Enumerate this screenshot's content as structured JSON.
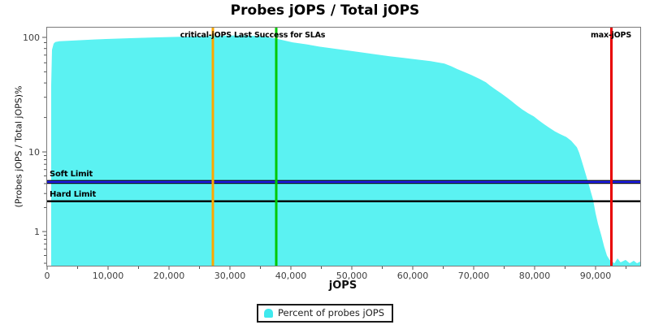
{
  "title": "Probes jOPS / Total jOPS",
  "annotations": {
    "critical_text": "critical-jOPS Last Success for SLAs",
    "max_text": "max-jOPS"
  },
  "legend": {
    "marker_color": "#3FE9EE"
  },
  "chart_data": {
    "type": "area",
    "title": "Probes jOPS / Total jOPS",
    "xlabel": "jOPS",
    "ylabel": "(Probes jOPS / Total jOPS)%",
    "grid": false,
    "legend_position": "bottom",
    "x_axis": {
      "min": 0,
      "max": 97300,
      "ticks": [
        {
          "value": 0,
          "label": "0"
        },
        {
          "value": 10000,
          "label": "10,000"
        },
        {
          "value": 20000,
          "label": "20,000"
        },
        {
          "value": 30000,
          "label": "30,000"
        },
        {
          "value": 40000,
          "label": "40,000"
        },
        {
          "value": 50000,
          "label": "50,000"
        },
        {
          "value": 60000,
          "label": "60,000"
        },
        {
          "value": 70000,
          "label": "70,000"
        },
        {
          "value": 80000,
          "label": "80,000"
        },
        {
          "value": 90000,
          "label": "90,000"
        }
      ],
      "minor_ticks": [
        5000,
        15000,
        25000,
        35000,
        45000,
        55000,
        65000,
        75000,
        85000,
        95000
      ]
    },
    "y_axis": {
      "scale": "log",
      "min": 0.36,
      "max": 123,
      "ticks": [
        {
          "value": 100,
          "label": "100"
        },
        {
          "value": 10,
          "label": "10"
        },
        {
          "value": 1,
          "label": "1"
        }
      ],
      "minor_ticks": [
        90,
        80,
        70,
        60,
        50,
        40,
        30,
        20,
        9,
        8,
        7,
        6,
        5,
        4,
        3,
        2,
        0.9,
        0.8,
        0.7,
        0.6,
        0.5,
        0.4
      ]
    },
    "series": [
      {
        "name": "Percent of probes jOPS",
        "color": "#5BF2F2",
        "points": [
          [
            667,
            0.38
          ],
          [
            667,
            38
          ],
          [
            800,
            78
          ],
          [
            1067,
            88
          ],
          [
            1333,
            91
          ],
          [
            2000,
            92.5
          ],
          [
            4667,
            94
          ],
          [
            8000,
            96
          ],
          [
            13600,
            98.4
          ],
          [
            18000,
            100
          ],
          [
            22533,
            101.5
          ],
          [
            27000,
            103
          ],
          [
            31000,
            104
          ],
          [
            33500,
            103.3
          ],
          [
            35867,
            101.5
          ],
          [
            38000,
            96.5
          ],
          [
            40267,
            90.5
          ],
          [
            42500,
            87
          ],
          [
            44667,
            83
          ],
          [
            47000,
            80
          ],
          [
            49200,
            77
          ],
          [
            51500,
            74
          ],
          [
            54000,
            71
          ],
          [
            56200,
            68.5
          ],
          [
            58533,
            66.3
          ],
          [
            60700,
            64
          ],
          [
            62933,
            62
          ],
          [
            65200,
            59
          ],
          [
            66300,
            56
          ],
          [
            67333,
            52.8
          ],
          [
            68500,
            49.7
          ],
          [
            69600,
            47
          ],
          [
            70933,
            43.5
          ],
          [
            72000,
            40.5
          ],
          [
            72667,
            38
          ],
          [
            73600,
            35
          ],
          [
            74533,
            32.4
          ],
          [
            75400,
            30
          ],
          [
            76267,
            27.6
          ],
          [
            77100,
            25.4
          ],
          [
            78000,
            23.4
          ],
          [
            78900,
            21.8
          ],
          [
            79867,
            20.4
          ],
          [
            80700,
            18.8
          ],
          [
            81600,
            17.4
          ],
          [
            82500,
            16.1
          ],
          [
            83333,
            15.1
          ],
          [
            84200,
            14.3
          ],
          [
            85200,
            13.5
          ],
          [
            86000,
            12.5
          ],
          [
            86933,
            11
          ],
          [
            87300,
            9.8
          ],
          [
            87600,
            8.3
          ],
          [
            88000,
            6.6
          ],
          [
            88400,
            5.2
          ],
          [
            88800,
            4.1
          ],
          [
            89200,
            3.2
          ],
          [
            89600,
            2.5
          ],
          [
            90000,
            1.7
          ],
          [
            90400,
            1.25
          ],
          [
            90933,
            0.9
          ],
          [
            91400,
            0.65
          ],
          [
            91867,
            0.5
          ],
          [
            92300,
            0.44
          ],
          [
            92667,
            0.42
          ],
          [
            93100,
            0.4
          ],
          [
            93600,
            0.46
          ],
          [
            94100,
            0.41
          ],
          [
            94933,
            0.44
          ],
          [
            95600,
            0.4
          ],
          [
            96267,
            0.43
          ],
          [
            96800,
            0.4
          ],
          [
            97333,
            0.42
          ]
        ]
      }
    ],
    "vertical_markers": [
      {
        "label": "critical-jOPS",
        "jops": 27200,
        "color": "#FFA800"
      },
      {
        "label": "Last Success for SLAs",
        "jops": 37600,
        "color": "#00C800"
      },
      {
        "label": "max-jOPS",
        "jops": 92600,
        "color": "#E80000"
      }
    ],
    "horizontal_lines": [
      {
        "label": "Soft Limit",
        "pct": 4.2,
        "color": "#2222EE",
        "edge": "#000000"
      },
      {
        "label": "Hard Limit",
        "pct": 2.4,
        "color": "#000000",
        "edge": null
      }
    ]
  }
}
